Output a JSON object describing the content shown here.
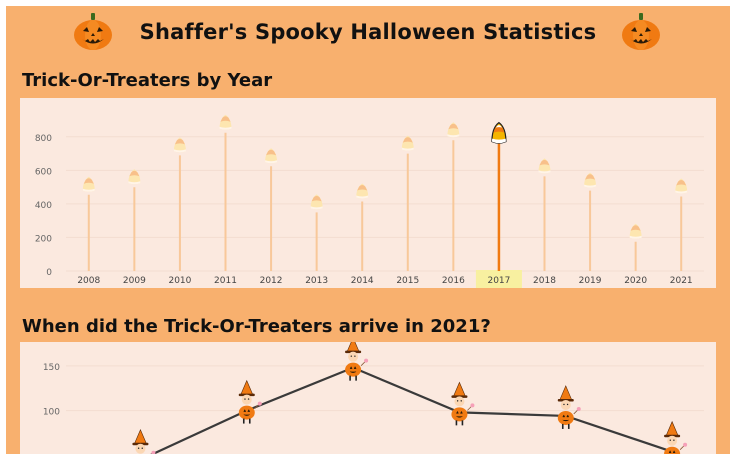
{
  "header": {
    "title": "Shaffer's Spooky Halloween Statistics",
    "left_icon": "pumpkin-icon",
    "right_icon": "pumpkin-icon"
  },
  "colors": {
    "background": "#f8b06e",
    "panel": "#fbe9df",
    "stick": "#f8c89a",
    "stick_selected": "#f07a12",
    "selected_highlight": "#f8f0a0",
    "line": "#3a3a3a"
  },
  "sections": {
    "by_year_title": "Trick-Or-Treaters by Year",
    "arrivals_title": "When did the Trick-Or-Treaters arrive in 2021?"
  },
  "chart_data": [
    {
      "type": "lollipop",
      "categories": [
        "2008",
        "2009",
        "2010",
        "2011",
        "2012",
        "2013",
        "2014",
        "2015",
        "2016",
        "2017",
        "2018",
        "2019",
        "2020",
        "2021"
      ],
      "values": [
        490,
        535,
        725,
        860,
        660,
        385,
        450,
        735,
        815,
        795,
        600,
        515,
        210,
        480
      ],
      "selected": "2017",
      "ylim": [
        -30,
        900
      ],
      "yticks": [
        0,
        200,
        400,
        600,
        800
      ],
      "marker_icon": "candy-corn-icon",
      "grid": true
    },
    {
      "type": "line",
      "yticks": [
        100,
        150
      ],
      "ylim": [
        38,
        170
      ],
      "x": [
        1,
        2,
        3,
        4,
        5,
        6
      ],
      "values": [
        45,
        100,
        148,
        98,
        94,
        54
      ],
      "marker_icon": "witch-costume-icon",
      "grid": true
    }
  ]
}
